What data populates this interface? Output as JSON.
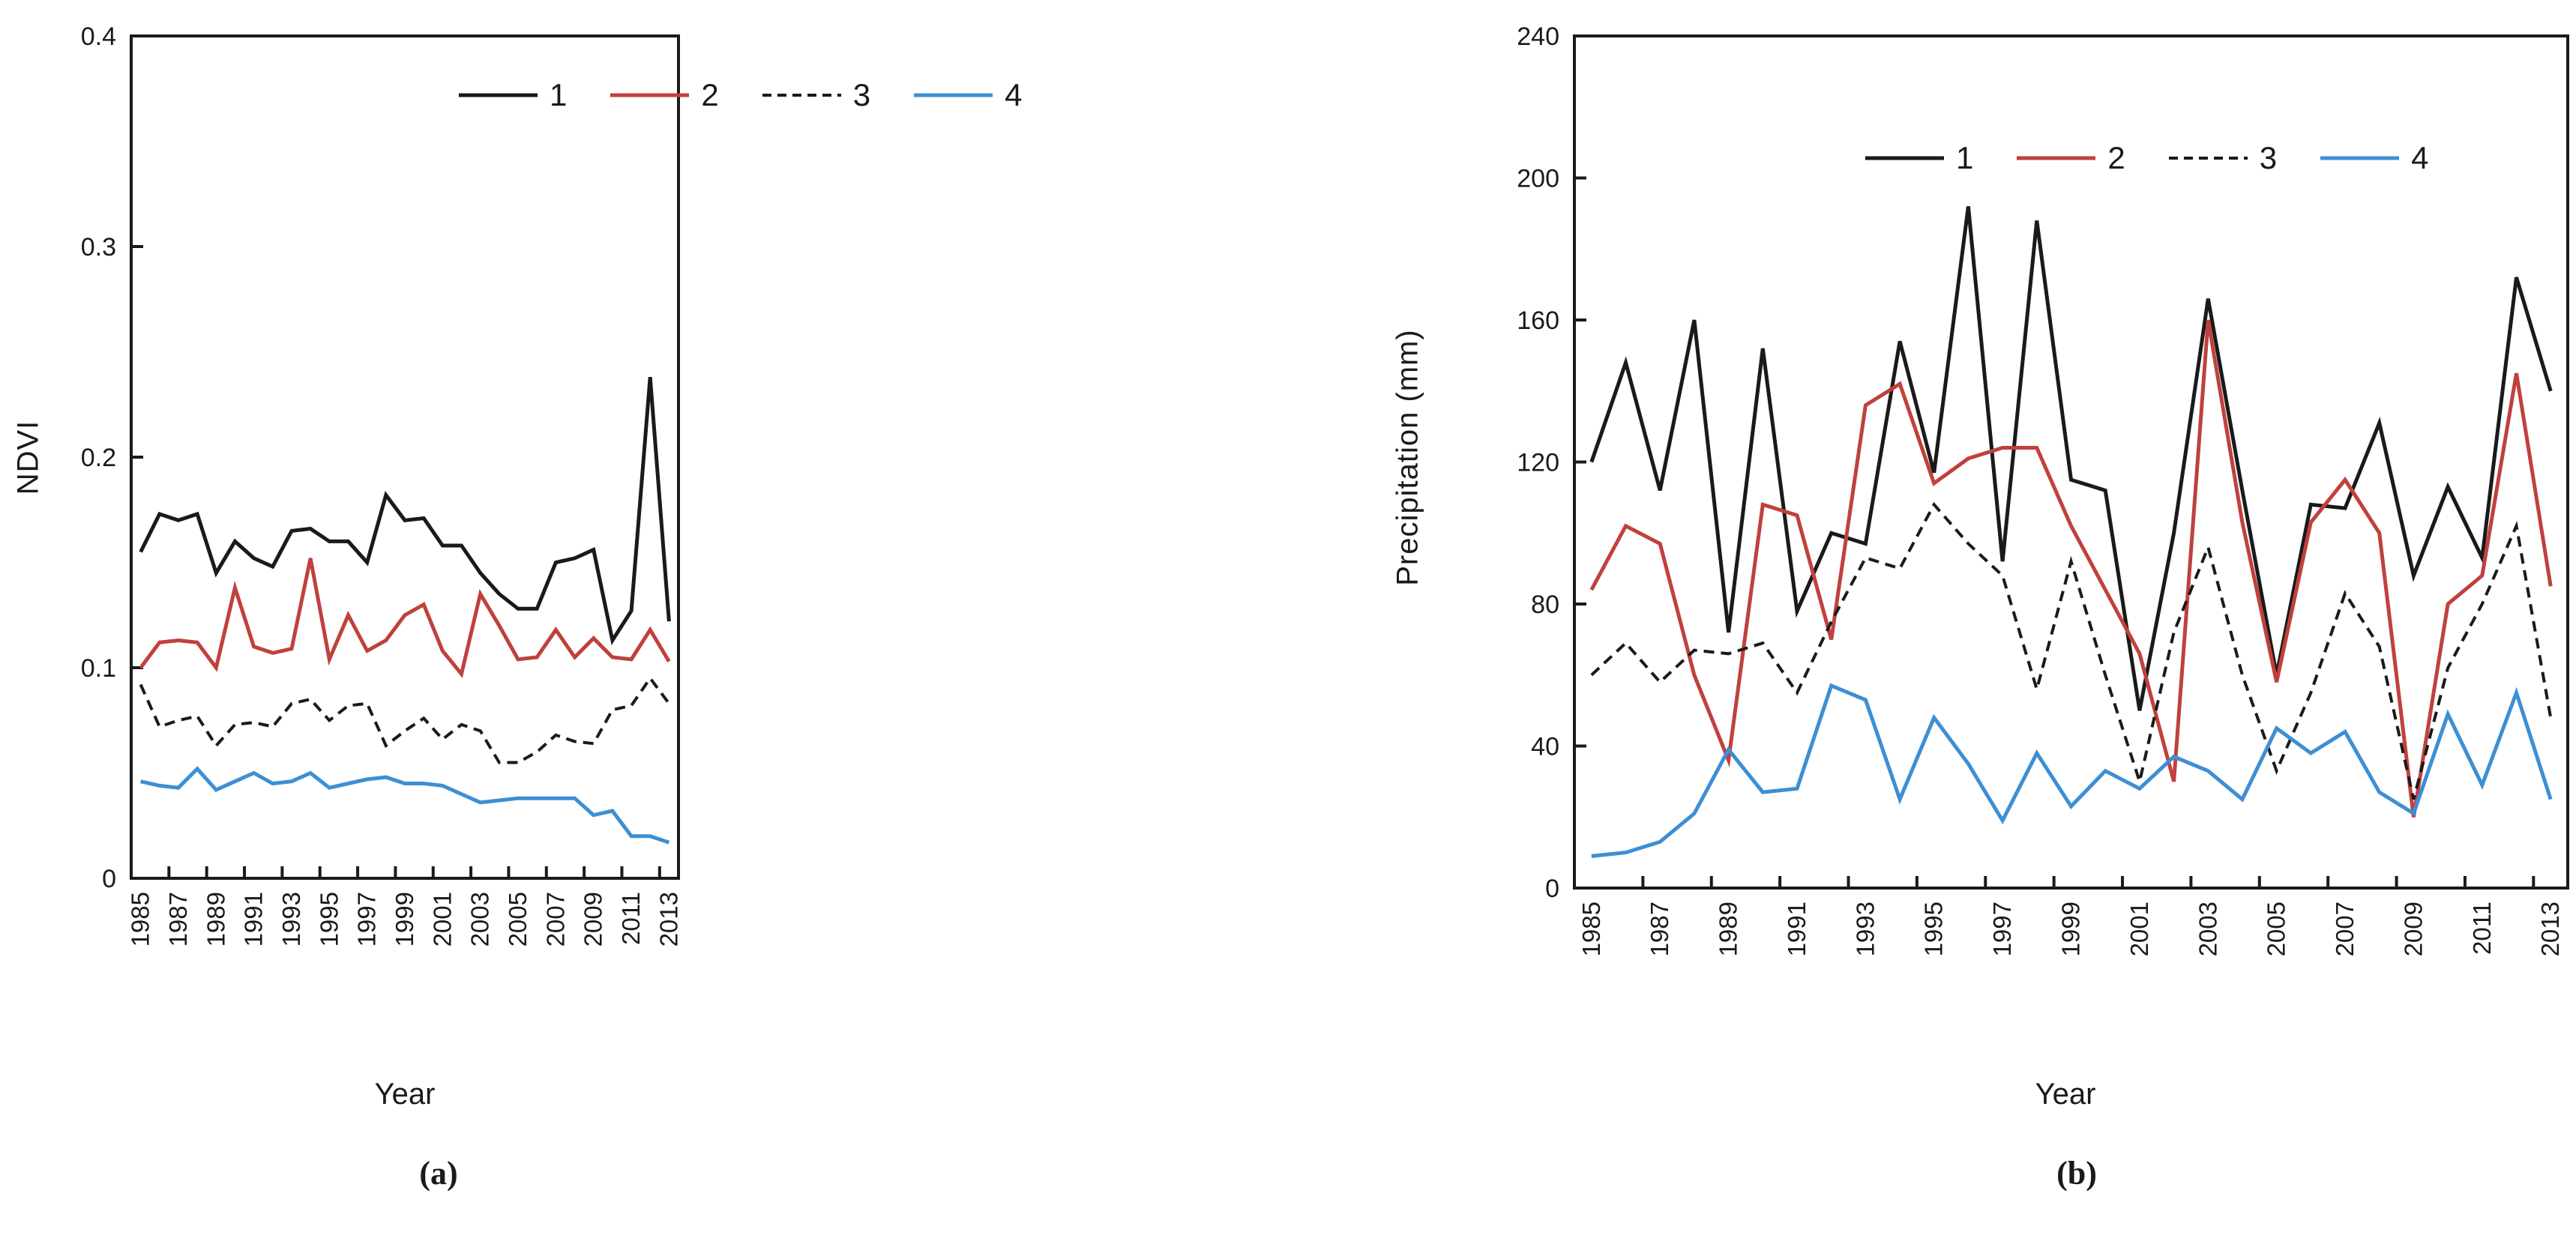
{
  "figure": {
    "background": "#ffffff",
    "captions": {
      "a": "(a)",
      "b": "(b)"
    },
    "colors": {
      "series1": "#1a1a1a",
      "series2": "#c0413c",
      "series3": "#1a1a1a",
      "series4": "#3d8fd4"
    }
  },
  "chart_data": [
    {
      "type": "line",
      "title": "",
      "xlabel": "Year",
      "ylabel": "NDVI",
      "caption": "(a)",
      "grid": false,
      "legend_position": "top",
      "ylim": [
        0,
        0.4
      ],
      "y_ticks": [
        "0",
        "0.1",
        "0.2",
        "0.3",
        "0.4"
      ],
      "x": [
        1985,
        1986,
        1987,
        1988,
        1989,
        1990,
        1991,
        1992,
        1993,
        1994,
        1995,
        1996,
        1997,
        1998,
        1999,
        2000,
        2001,
        2002,
        2003,
        2004,
        2005,
        2006,
        2007,
        2008,
        2009,
        2010,
        2011,
        2012,
        2013
      ],
      "x_tick_labels": [
        "1985",
        "1987",
        "1989",
        "1991",
        "1993",
        "1995",
        "1997",
        "1999",
        "2001",
        "2003",
        "2005",
        "2007",
        "2009",
        "2011",
        "2013"
      ],
      "series": [
        {
          "name": "1",
          "color": "#1a1a1a",
          "dash": "solid",
          "values": [
            0.155,
            0.173,
            0.17,
            0.173,
            0.145,
            0.16,
            0.152,
            0.148,
            0.165,
            0.166,
            0.16,
            0.16,
            0.15,
            0.182,
            0.17,
            0.171,
            0.158,
            0.158,
            0.145,
            0.135,
            0.128,
            0.128,
            0.15,
            0.152,
            0.156,
            0.113,
            0.127,
            0.238,
            0.122
          ]
        },
        {
          "name": "2",
          "color": "#c0413c",
          "dash": "solid",
          "values": [
            0.1,
            0.112,
            0.113,
            0.112,
            0.1,
            0.138,
            0.11,
            0.107,
            0.109,
            0.152,
            0.104,
            0.125,
            0.108,
            0.113,
            0.125,
            0.13,
            0.108,
            0.097,
            0.135,
            0.12,
            0.104,
            0.105,
            0.118,
            0.105,
            0.114,
            0.105,
            0.104,
            0.118,
            0.103
          ]
        },
        {
          "name": "3",
          "color": "#1a1a1a",
          "dash": "dashed",
          "values": [
            0.092,
            0.072,
            0.075,
            0.077,
            0.063,
            0.073,
            0.074,
            0.072,
            0.083,
            0.085,
            0.075,
            0.082,
            0.083,
            0.063,
            0.07,
            0.076,
            0.066,
            0.073,
            0.07,
            0.055,
            0.055,
            0.06,
            0.068,
            0.065,
            0.064,
            0.08,
            0.082,
            0.095,
            0.083
          ]
        },
        {
          "name": "4",
          "color": "#3d8fd4",
          "dash": "solid",
          "values": [
            0.046,
            0.044,
            0.043,
            0.052,
            0.042,
            0.046,
            0.05,
            0.045,
            0.046,
            0.05,
            0.043,
            0.045,
            0.047,
            0.048,
            0.045,
            0.045,
            0.044,
            0.04,
            0.036,
            0.037,
            0.038,
            0.038,
            0.038,
            0.038,
            0.03,
            0.032,
            0.02,
            0.02,
            0.017
          ]
        }
      ]
    },
    {
      "type": "line",
      "title": "",
      "xlabel": "Year",
      "ylabel": "Precipitation (mm)",
      "caption": "(b)",
      "grid": false,
      "legend_position": "top",
      "ylim": [
        0,
        240
      ],
      "y_ticks": [
        "0",
        "40",
        "80",
        "120",
        "160",
        "200",
        "240"
      ],
      "x": [
        1985,
        1986,
        1987,
        1988,
        1989,
        1990,
        1991,
        1992,
        1993,
        1994,
        1995,
        1996,
        1997,
        1998,
        1999,
        2000,
        2001,
        2002,
        2003,
        2004,
        2005,
        2006,
        2007,
        2008,
        2009,
        2010,
        2011,
        2012,
        2013
      ],
      "x_tick_labels": [
        "1985",
        "1987",
        "1989",
        "1991",
        "1993",
        "1995",
        "1997",
        "1999",
        "2001",
        "2003",
        "2005",
        "2007",
        "2009",
        "2011",
        "2013"
      ],
      "series": [
        {
          "name": "1",
          "color": "#1a1a1a",
          "dash": "solid",
          "values": [
            120,
            148,
            112,
            160,
            72,
            152,
            78,
            100,
            97,
            154,
            117,
            192,
            92,
            188,
            115,
            112,
            50,
            100,
            166,
            112,
            60,
            108,
            107,
            131,
            88,
            113,
            93,
            172,
            140
          ]
        },
        {
          "name": "2",
          "color": "#c0413c",
          "dash": "solid",
          "values": [
            84,
            102,
            97,
            60,
            36,
            108,
            105,
            70,
            136,
            142,
            114,
            121,
            124,
            124,
            102,
            84,
            66,
            30,
            160,
            103,
            58,
            103,
            115,
            100,
            20,
            80,
            88,
            145,
            85
          ]
        },
        {
          "name": "3",
          "color": "#1a1a1a",
          "dash": "dashed",
          "values": [
            60,
            69,
            58,
            67,
            66,
            69,
            55,
            75,
            93,
            90,
            108,
            97,
            88,
            56,
            92,
            60,
            30,
            72,
            96,
            60,
            33,
            55,
            83,
            68,
            25,
            62,
            80,
            102,
            48
          ]
        },
        {
          "name": "4",
          "color": "#3d8fd4",
          "dash": "solid",
          "values": [
            9,
            10,
            13,
            21,
            39,
            27,
            28,
            57,
            53,
            25,
            48,
            35,
            19,
            38,
            23,
            33,
            28,
            37,
            33,
            25,
            45,
            38,
            44,
            27,
            21,
            49,
            29,
            55,
            25
          ]
        }
      ]
    }
  ]
}
